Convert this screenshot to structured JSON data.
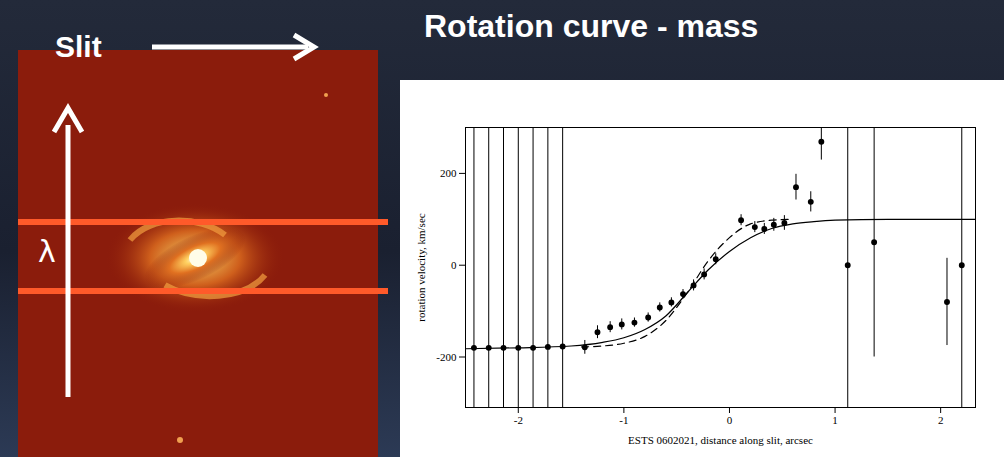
{
  "slide": {
    "title": "Rotation curve - mass",
    "image_labels": {
      "slit": "Slit",
      "wavelength": "λ"
    }
  },
  "chart_data": {
    "type": "scatter",
    "xlabel": "ESTS 0602021, distance along slit, arcsec",
    "ylabel": "rotation velocity, km/sec",
    "xlim": [
      -2.5,
      2.33
    ],
    "ylim": [
      -310,
      300
    ],
    "xticks": [
      -2,
      -1,
      0,
      1,
      2
    ],
    "yticks": [
      -200,
      0,
      200
    ],
    "grid": false,
    "series": [
      {
        "type": "scatter",
        "marker": "circle",
        "color": "#000000",
        "x": [
          -2.42,
          -2.28,
          -2.14,
          -2.0,
          -1.86,
          -1.72,
          -1.58,
          -1.37,
          -1.25,
          -1.13,
          -1.02,
          -0.9,
          -0.77,
          -0.66,
          -0.55,
          -0.44,
          -0.34,
          -0.24,
          -0.13,
          0.11,
          0.24,
          0.33,
          0.42,
          0.52,
          0.63,
          0.77,
          0.87,
          1.12,
          1.37,
          2.06,
          2.2
        ],
        "values": [
          -180,
          -180,
          -180,
          -180,
          -180,
          -178,
          -177,
          -179,
          -146,
          -135,
          -129,
          -125,
          -114,
          -92,
          -81,
          -63,
          -44,
          -20,
          13,
          98,
          83,
          79,
          88,
          92,
          170,
          138,
          269,
          0,
          50,
          -80,
          0
        ],
        "errors": [
          600,
          600,
          600,
          600,
          600,
          600,
          600,
          15,
          14,
          12,
          12,
          10,
          10,
          10,
          10,
          10,
          12,
          12,
          12,
          12,
          12,
          12,
          14,
          16,
          28,
          22,
          40,
          600,
          250,
          95,
          600
        ]
      },
      {
        "type": "line",
        "line_style": "solid",
        "color": "#000000",
        "x": [
          -2.5,
          -2,
          -1.5,
          -1.2,
          -1,
          -0.8,
          -0.6,
          -0.4,
          -0.2,
          0,
          0.2,
          0.4,
          0.6,
          0.8,
          1,
          1.5,
          2,
          2.33
        ],
        "values": [
          -182,
          -180,
          -176,
          -168,
          -158,
          -140,
          -110,
          -60,
          -10,
          30,
          60,
          80,
          90,
          95,
          98,
          100,
          100,
          100
        ]
      },
      {
        "type": "line",
        "line_style": "dashed",
        "color": "#000000",
        "x": [
          -1.4,
          -1.2,
          -1,
          -0.8,
          -0.6,
          -0.4,
          -0.2,
          0,
          0.2,
          0.4,
          0.6
        ],
        "values": [
          -178,
          -176,
          -170,
          -155,
          -120,
          -60,
          10,
          60,
          90,
          98,
          100
        ]
      }
    ]
  }
}
